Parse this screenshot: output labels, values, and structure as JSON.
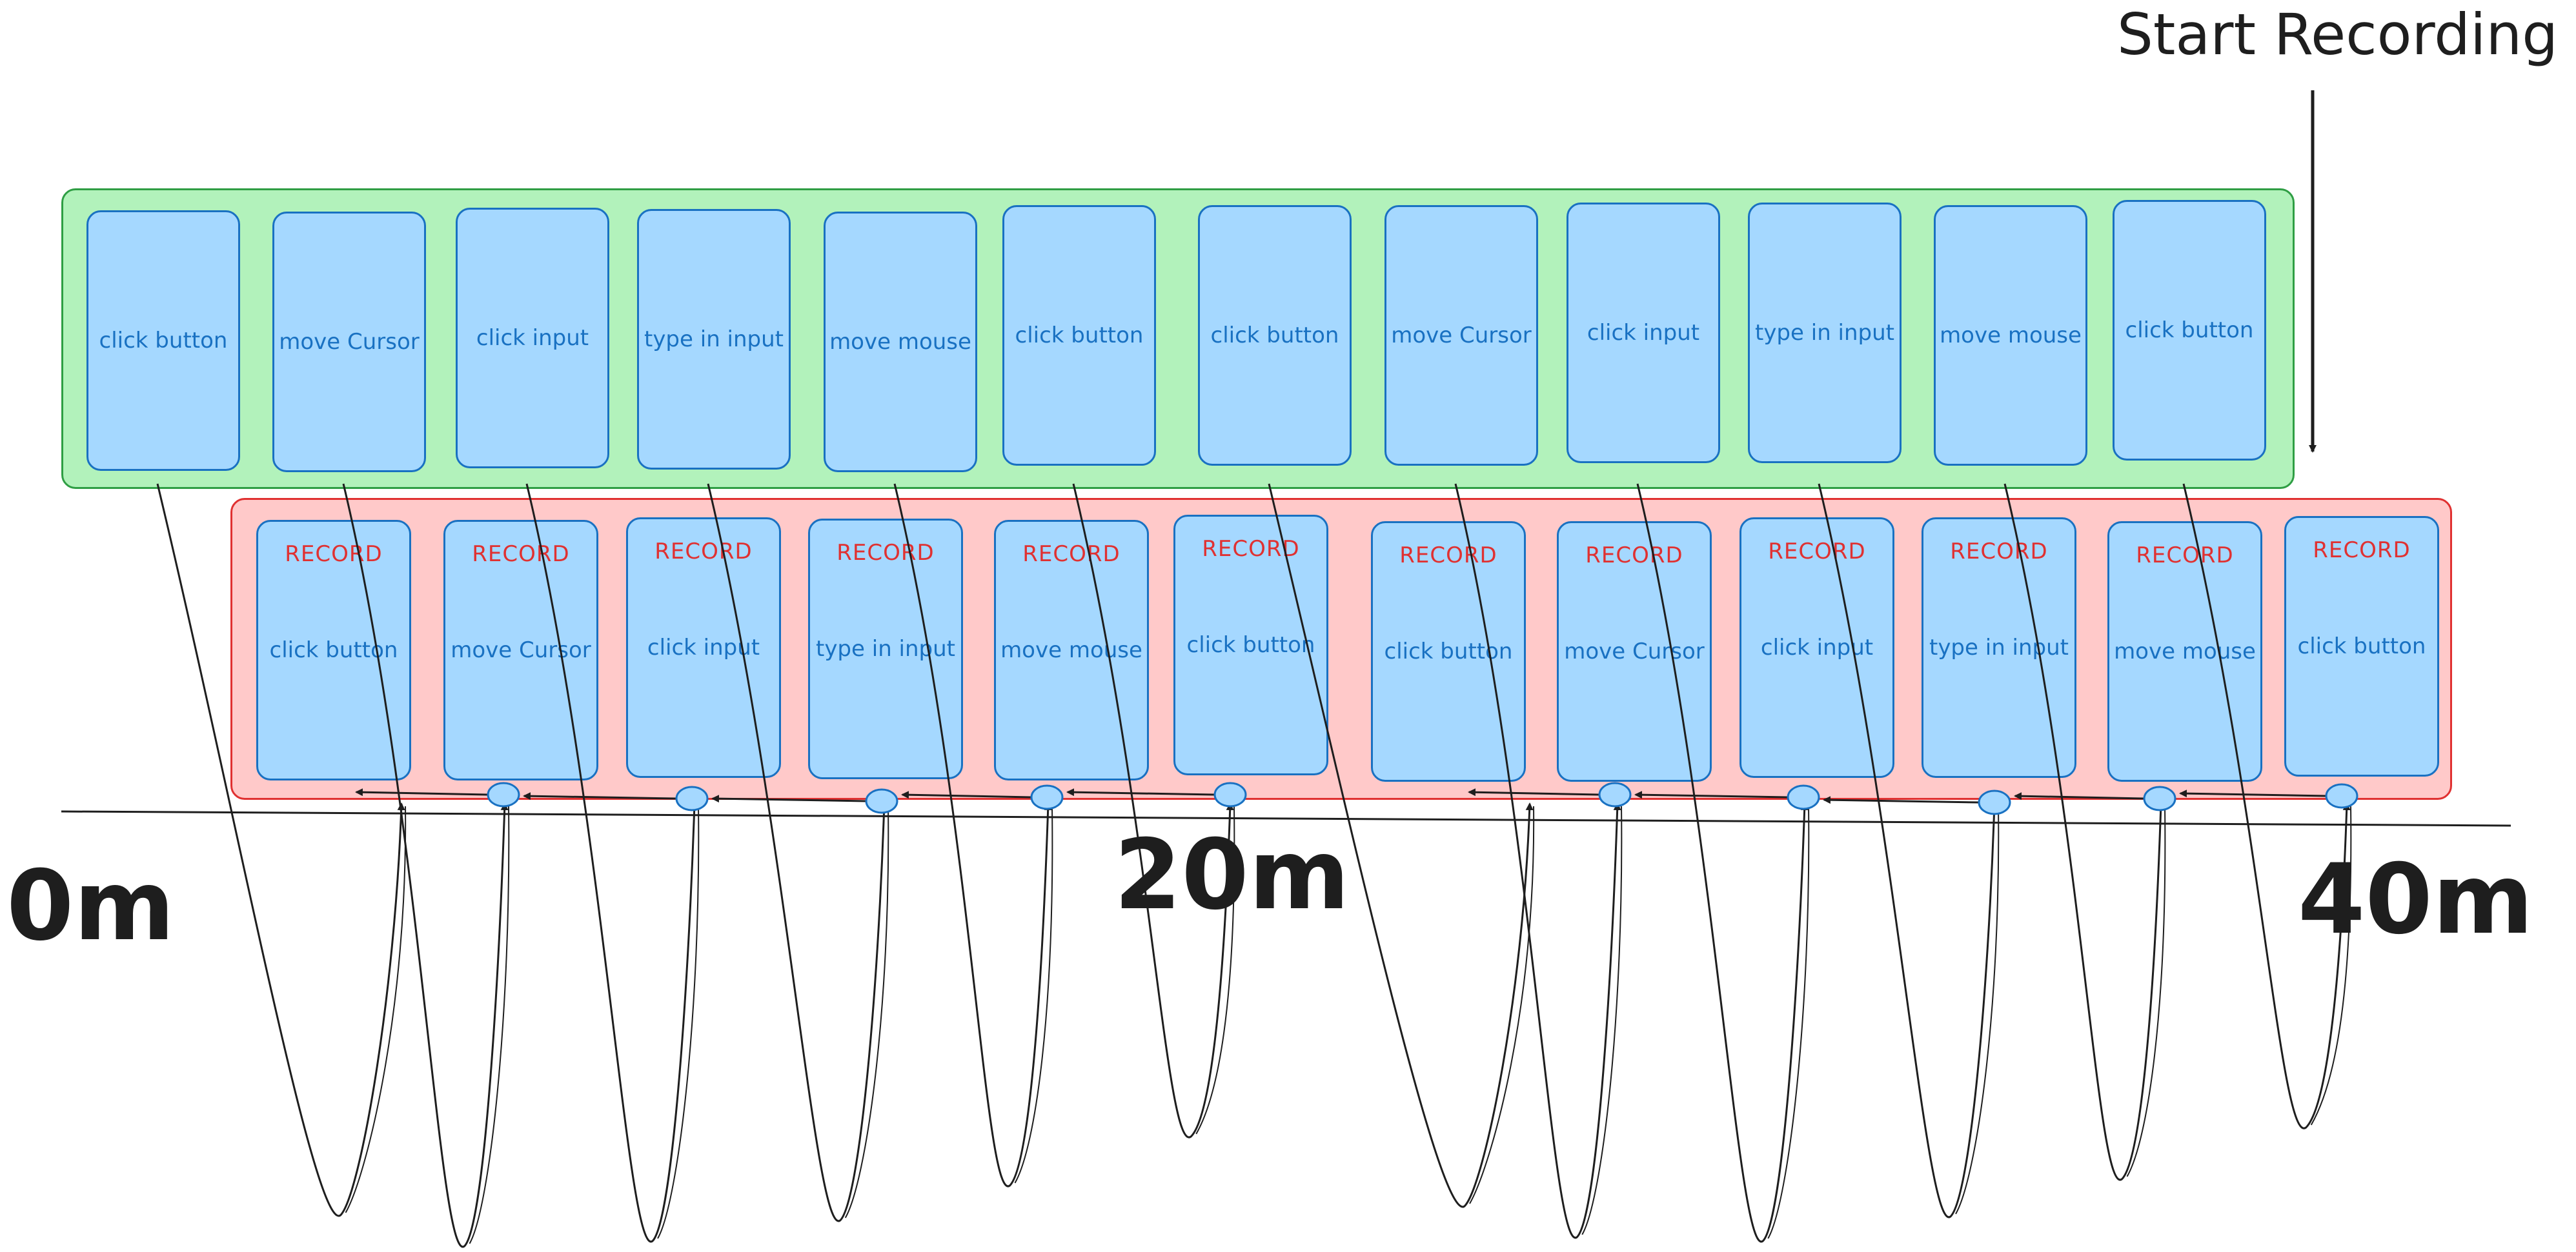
{
  "annotation": {
    "start": "Start Recording"
  },
  "time_labels": [
    "0m",
    "20m",
    "40m"
  ],
  "record_tag": "RECORD",
  "actions": [
    "click button",
    "move Cursor",
    "click input",
    "type in input",
    "move mouse",
    "click button",
    "click button",
    "move Cursor",
    "click input",
    "type in input",
    "move mouse",
    "click button"
  ],
  "colors": {
    "green_fill": "#b2f2bb",
    "red_fill": "#ffc9c9",
    "card_fill": "#a5d8ff",
    "card_stroke": "#1971c2",
    "record_text": "#e03131",
    "ink": "#1e1e1e"
  }
}
